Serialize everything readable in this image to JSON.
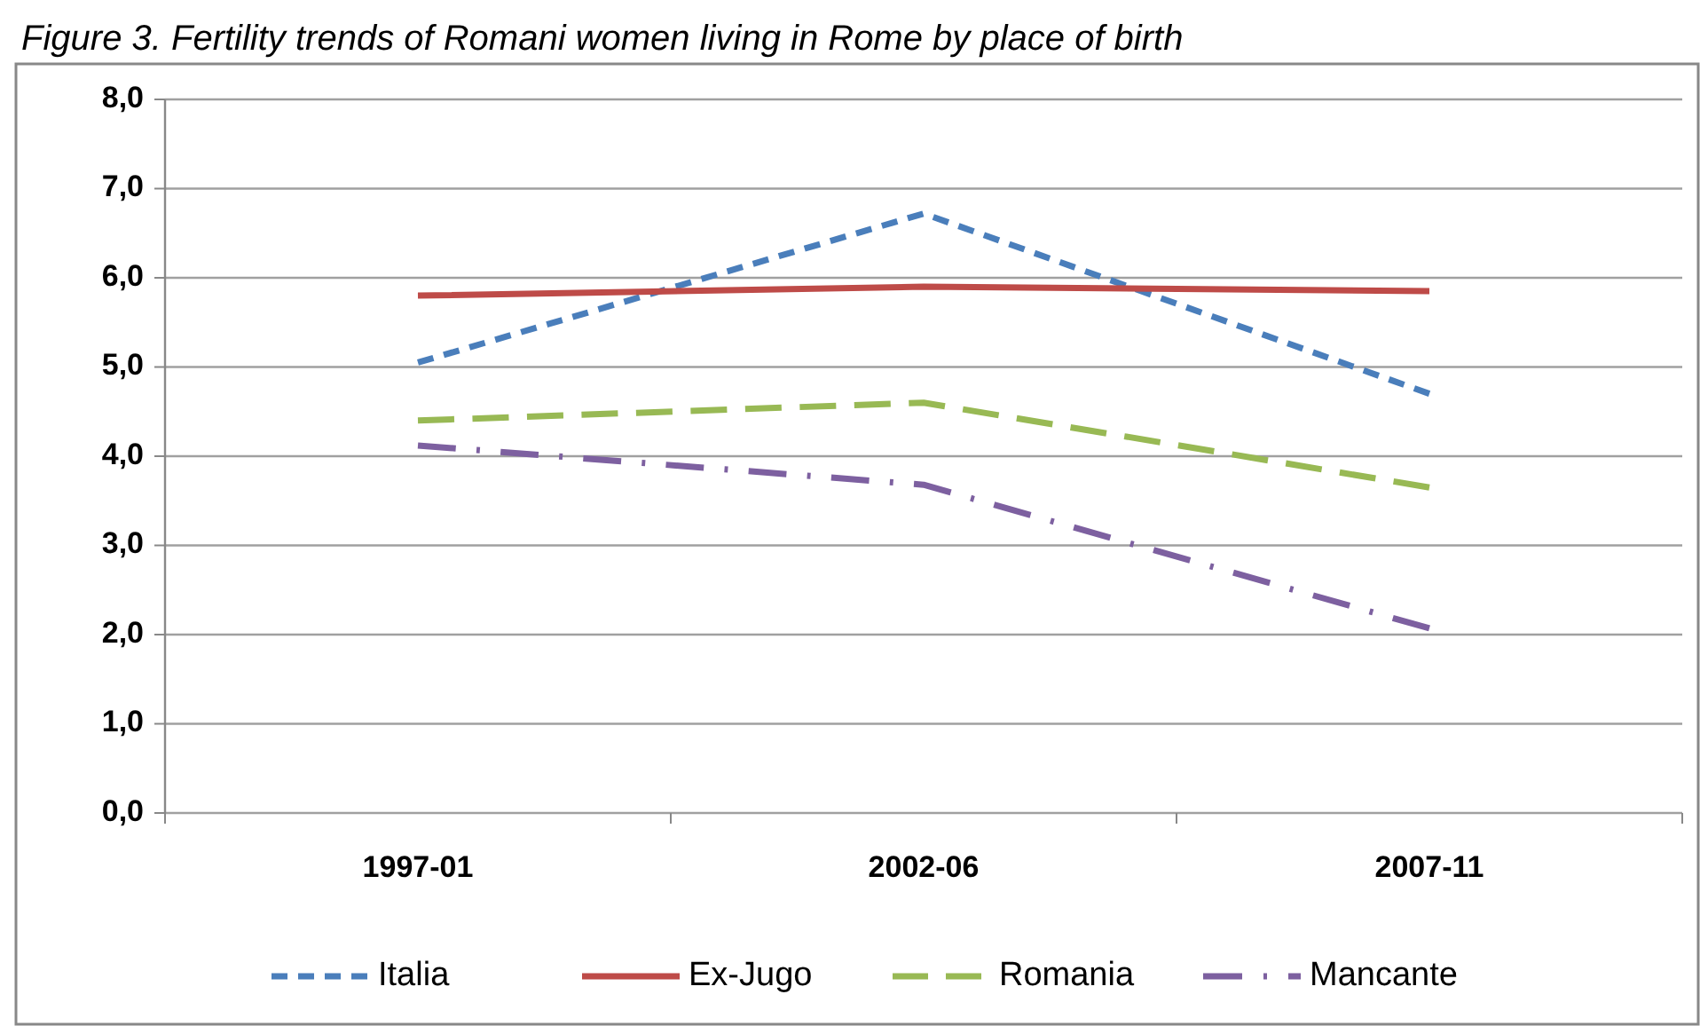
{
  "chart_data": {
    "type": "line",
    "title": "Figure 3. Fertility trends of Romani women living in Rome by place of birth",
    "categories": [
      "1997-01",
      "2002-06",
      "2007-11"
    ],
    "series": [
      {
        "name": "Italia",
        "color": "#4a7ebb",
        "values": [
          5.05,
          6.72,
          4.7
        ],
        "line_style": "dashed"
      },
      {
        "name": "Ex-Jugo",
        "color": "#be4b48",
        "values": [
          5.8,
          5.9,
          5.85
        ],
        "line_style": "solid"
      },
      {
        "name": "Romania",
        "color": "#98b954",
        "values": [
          4.4,
          4.6,
          3.65
        ],
        "line_style": "longdash"
      },
      {
        "name": "Mancante",
        "color": "#7d60a0",
        "values": [
          4.12,
          3.68,
          2.07
        ],
        "line_style": "dashdot"
      }
    ],
    "ylim": [
      0,
      8
    ],
    "yticks": [
      {
        "value": 0,
        "label": "0,0"
      },
      {
        "value": 1,
        "label": "1,0"
      },
      {
        "value": 2,
        "label": "2,0"
      },
      {
        "value": 3,
        "label": "3,0"
      },
      {
        "value": 4,
        "label": "4,0"
      },
      {
        "value": 5,
        "label": "5,0"
      },
      {
        "value": 6,
        "label": "6,0"
      },
      {
        "value": 7,
        "label": "7,0"
      },
      {
        "value": 8,
        "label": "8,0"
      }
    ],
    "grid": "y",
    "legend": "bottom"
  }
}
